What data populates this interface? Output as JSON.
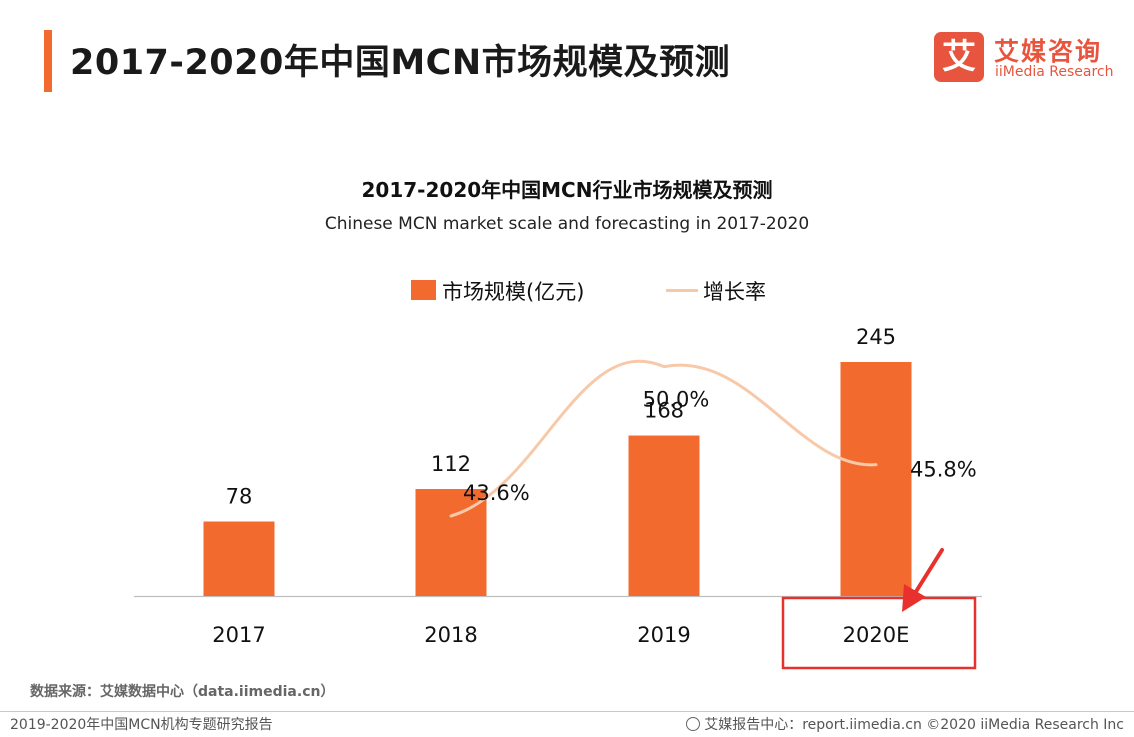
{
  "header": {
    "title": "2017-2020年中国MCN市场规模及预测"
  },
  "logo": {
    "mark": "艾",
    "name_cn": "艾媒咨询",
    "name_en": "iiMedia Research"
  },
  "chart_data": {
    "type": "bar",
    "title": "2017-2020年中国MCN行业市场规模及预测",
    "subtitle": "Chinese MCN market scale and forecasting in 2017-2020",
    "categories": [
      "2017",
      "2018",
      "2019",
      "2020E"
    ],
    "series": [
      {
        "name": "市场规模(亿元)",
        "type": "bar",
        "values": [
          78,
          112,
          168,
          245
        ],
        "labels": [
          "78",
          "112",
          "168",
          "245"
        ]
      },
      {
        "name": "增长率",
        "type": "line",
        "values": [
          null,
          43.6,
          50.0,
          45.8
        ],
        "labels": [
          "",
          "43.6%",
          "50.0%",
          "45.8%"
        ]
      }
    ],
    "bar_color": "#f26a2e",
    "line_color": "#f8c9a9",
    "highlight_color": "#e8312d",
    "highlighted_category": "2020E",
    "legend_position": "top-center",
    "grid": false
  },
  "source_note": "数据来源：艾媒数据中心（data.iimedia.cn）",
  "footer": {
    "left": "2019-2020年中国MCN机构专题研究报告",
    "right": "艾媒报告中心：report.iimedia.cn   ©2020  iiMedia Research  Inc"
  }
}
